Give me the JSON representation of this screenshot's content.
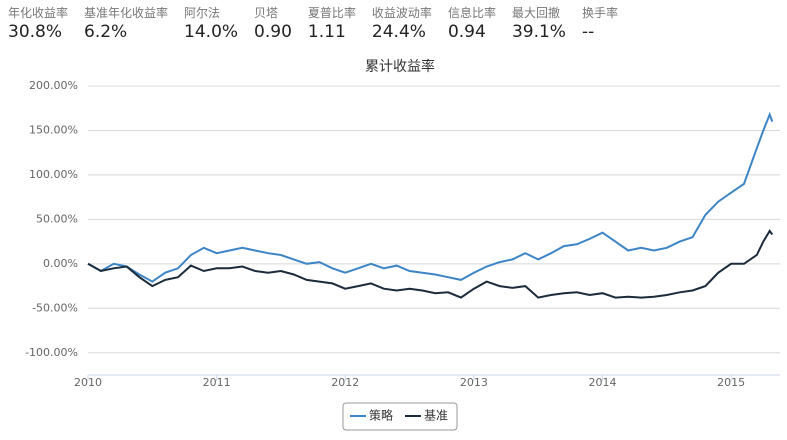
{
  "metrics": [
    {
      "label": "年化收益率",
      "value": "30.8%"
    },
    {
      "label": "基准年化收益率",
      "value": "6.2%"
    },
    {
      "label": "阿尔法",
      "value": "14.0%"
    },
    {
      "label": "贝塔",
      "value": "0.90"
    },
    {
      "label": "夏普比率",
      "value": "1.11"
    },
    {
      "label": "收益波动率",
      "value": "24.4%"
    },
    {
      "label": "信息比率",
      "value": "0.94"
    },
    {
      "label": "最大回撤",
      "value": "39.1%"
    },
    {
      "label": "换手率",
      "value": "--"
    }
  ],
  "chart_data": {
    "type": "line",
    "title": "累计收益率",
    "x": [
      2010.0,
      2010.1,
      2010.2,
      2010.3,
      2010.4,
      2010.5,
      2010.6,
      2010.7,
      2010.8,
      2010.9,
      2011.0,
      2011.1,
      2011.2,
      2011.3,
      2011.4,
      2011.5,
      2011.6,
      2011.7,
      2011.8,
      2011.9,
      2012.0,
      2012.1,
      2012.2,
      2012.3,
      2012.4,
      2012.5,
      2012.6,
      2012.7,
      2012.8,
      2012.9,
      2013.0,
      2013.1,
      2013.2,
      2013.3,
      2013.4,
      2013.5,
      2013.6,
      2013.7,
      2013.8,
      2013.9,
      2014.0,
      2014.1,
      2014.2,
      2014.3,
      2014.4,
      2014.5,
      2014.6,
      2014.7,
      2014.8,
      2014.9,
      2015.0,
      2015.1,
      2015.2,
      2015.25,
      2015.3,
      2015.32
    ],
    "series": [
      {
        "name": "策略",
        "color": "#3d85c6",
        "values": [
          0,
          -8,
          0,
          -3,
          -12,
          -20,
          -10,
          -5,
          10,
          18,
          12,
          15,
          18,
          15,
          12,
          10,
          5,
          0,
          2,
          -5,
          -10,
          -5,
          0,
          -5,
          -2,
          -8,
          -10,
          -12,
          -15,
          -18,
          -10,
          -3,
          2,
          5,
          12,
          5,
          12,
          20,
          22,
          28,
          35,
          25,
          15,
          18,
          15,
          18,
          25,
          30,
          55,
          70,
          80,
          90,
          130,
          150,
          168,
          160
        ]
      },
      {
        "name": "基准",
        "color": "#1c2b3c",
        "values": [
          0,
          -8,
          -5,
          -3,
          -15,
          -25,
          -18,
          -15,
          -2,
          -8,
          -5,
          -5,
          -3,
          -8,
          -10,
          -8,
          -12,
          -18,
          -20,
          -22,
          -28,
          -25,
          -22,
          -28,
          -30,
          -28,
          -30,
          -33,
          -32,
          -38,
          -28,
          -20,
          -25,
          -27,
          -25,
          -38,
          -35,
          -33,
          -32,
          -35,
          -33,
          -38,
          -37,
          -38,
          -37,
          -35,
          -32,
          -30,
          -25,
          -10,
          0,
          0,
          10,
          25,
          37,
          33
        ]
      }
    ],
    "xlim": [
      2010,
      2015.38
    ],
    "xticks": [
      2010,
      2011,
      2012,
      2013,
      2014,
      2015
    ],
    "ylim": [
      -125,
      200
    ],
    "yticks": [
      {
        "value": -100,
        "label": "-100.00%"
      },
      {
        "value": -50,
        "label": "-50.00%"
      },
      {
        "value": 0,
        "label": "0.00%"
      },
      {
        "value": 50,
        "label": "50.00%"
      },
      {
        "value": 100,
        "label": "100.00%"
      },
      {
        "value": 150,
        "label": "150.00%"
      },
      {
        "value": 200,
        "label": "200.00%"
      }
    ],
    "grid": true
  }
}
